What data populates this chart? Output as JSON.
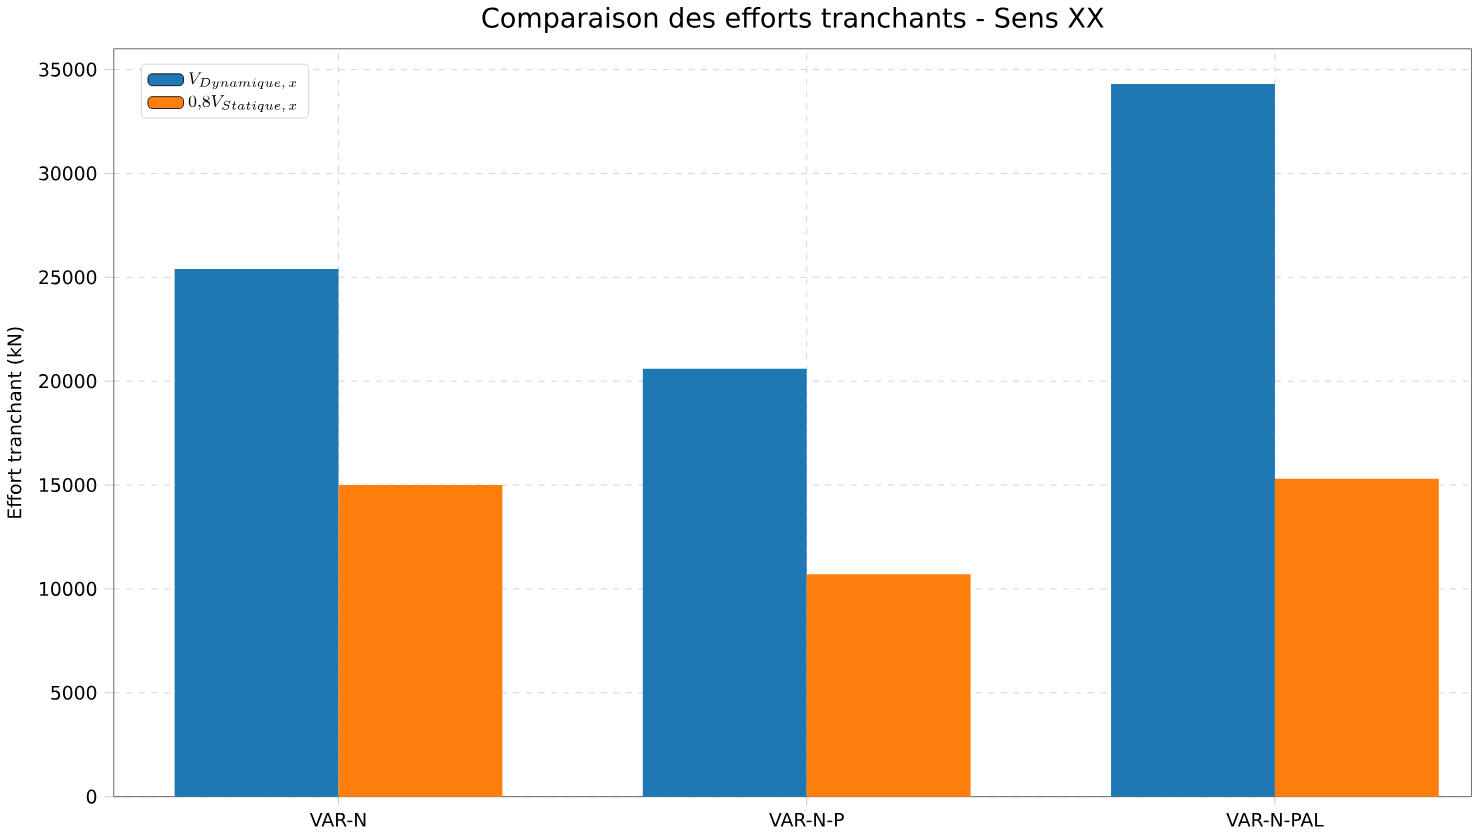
{
  "chart_data": {
    "type": "bar",
    "title": "Comparaison des efforts tranchants - Sens XX",
    "ylabel": "Effort tranchant (kN)",
    "categories": [
      "VAR-N",
      "VAR-N-P",
      "VAR-N-PAL"
    ],
    "series": [
      {
        "name": "V_{Dynamique,\\,x}",
        "color": "#1f77b4",
        "values": [
          25400,
          20600,
          34300
        ]
      },
      {
        "name": "0{,}8V_{Statique,\\,x}",
        "color": "#ff7f0e",
        "values": [
          15000,
          10700,
          15300
        ]
      }
    ],
    "ylim": [
      0,
      36000
    ],
    "yticks": [
      0,
      5000,
      10000,
      15000,
      20000,
      25000,
      30000,
      35000
    ],
    "grid": true,
    "legend": "top left"
  }
}
